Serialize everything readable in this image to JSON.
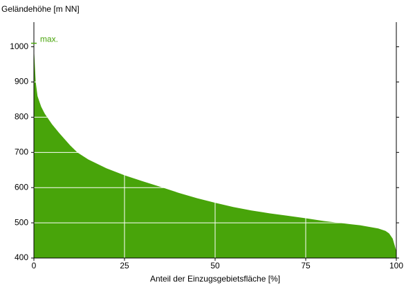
{
  "chart_data": {
    "type": "area",
    "y_label": "Geländehöhe [m NN]",
    "x_label": "Anteil der Einzugsgebietsfläche [%]",
    "annotation": {
      "text": "max.",
      "value": 1010
    },
    "x": [
      0,
      0.5,
      1,
      2,
      3,
      5,
      7,
      10,
      12,
      15,
      20,
      25,
      30,
      35,
      40,
      45,
      50,
      55,
      60,
      65,
      70,
      75,
      80,
      85,
      90,
      95,
      97,
      98,
      99,
      100
    ],
    "values": [
      1000,
      900,
      860,
      830,
      810,
      780,
      755,
      720,
      700,
      680,
      655,
      635,
      618,
      602,
      585,
      570,
      557,
      545,
      535,
      527,
      520,
      513,
      505,
      499,
      493,
      484,
      477,
      470,
      455,
      420
    ],
    "color": "#48a40a",
    "xlim": [
      0,
      100
    ],
    "xticks": [
      0,
      25,
      50,
      75,
      100
    ],
    "ylim": [
      400,
      1070
    ],
    "yticks": [
      400,
      500,
      600,
      700,
      800,
      900,
      1000
    ],
    "grid": true
  }
}
